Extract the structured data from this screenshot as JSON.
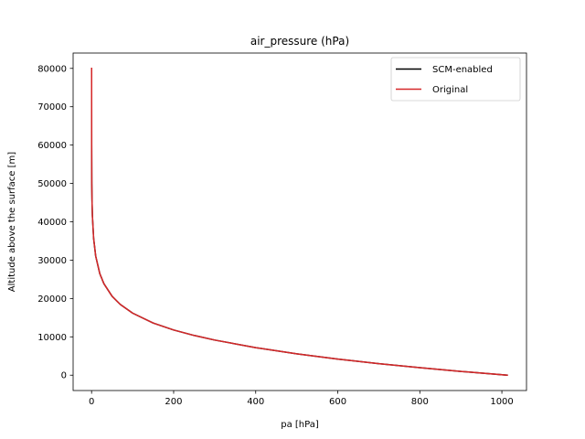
{
  "chart_data": {
    "type": "line",
    "title": "air_pressure (hPa)",
    "xlabel": "pa [hPa]",
    "ylabel": "Altitude above the surface [m]",
    "xlim": [
      -45,
      1060
    ],
    "ylim": [
      -4000,
      84000
    ],
    "xticks": [
      0,
      200,
      400,
      600,
      800,
      1000
    ],
    "yticks": [
      0,
      10000,
      20000,
      30000,
      40000,
      50000,
      60000,
      70000,
      80000
    ],
    "grid": false,
    "legend_placement": "top-right",
    "series": [
      {
        "name": "SCM-enabled",
        "color": "#000000",
        "x": [
          1013,
          900,
          800,
          700,
          600,
          500,
          400,
          300,
          250,
          200,
          150,
          100,
          70,
          50,
          30,
          20,
          10,
          5,
          2,
          1,
          0.5,
          0.2,
          0.1
        ],
        "y": [
          0,
          990,
          1950,
          3010,
          4210,
          5570,
          7190,
          9160,
          10360,
          11780,
          13610,
          16180,
          18440,
          20580,
          23850,
          26480,
          31060,
          35650,
          41500,
          45700,
          50000,
          60000,
          80000
        ]
      },
      {
        "name": "Original",
        "color": "#d62728",
        "x": [
          1013,
          900,
          800,
          700,
          600,
          500,
          400,
          300,
          250,
          200,
          150,
          100,
          70,
          50,
          30,
          20,
          10,
          5,
          2,
          1,
          0.5,
          0.2,
          0.1
        ],
        "y": [
          0,
          990,
          1950,
          3010,
          4210,
          5570,
          7190,
          9160,
          10360,
          11780,
          13610,
          16180,
          18440,
          20580,
          23850,
          26480,
          31060,
          35650,
          41500,
          45700,
          50000,
          60000,
          80000
        ]
      }
    ]
  }
}
